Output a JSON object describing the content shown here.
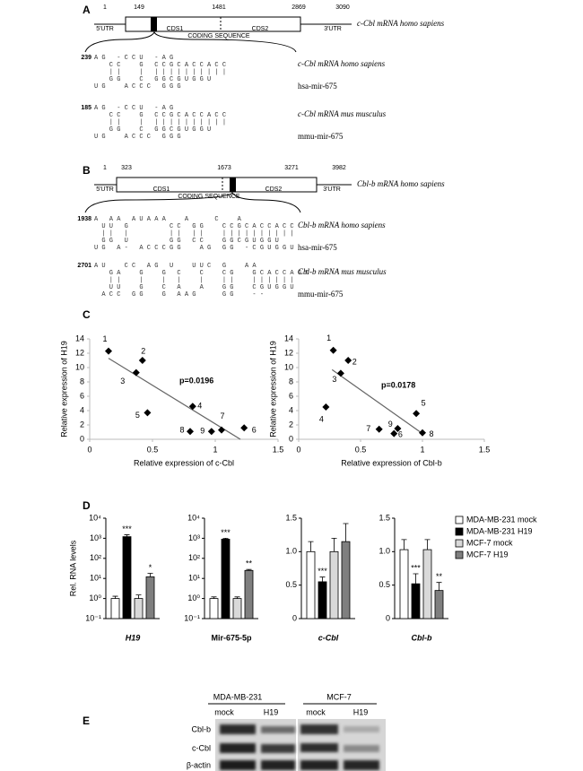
{
  "panel_a": {
    "label": "A",
    "positions": [
      1,
      149,
      1481,
      2869,
      3090
    ],
    "regions": [
      "5'UTR",
      "CDS1",
      "CDS2",
      "3'UTR"
    ],
    "coding_label": "CODING SEQUENCE",
    "mrna_label": "c-Cbl mRNA homo sapiens",
    "alignments": [
      {
        "start": 239,
        "lines": [
          "A G   - C C U   - A G",
          "    C C     G   C C G C A C C A C C",
          "    | |     |   | | | | | | | | | |",
          "    G G     C   G G C G U G G U",
          "U G     A C C C   G G G"
        ],
        "target": "c-Cbl mRNA homo sapiens",
        "mirna": "hsa-mir-675"
      },
      {
        "start": 185,
        "lines": [
          "A G   - C C U   - A G",
          "    C C     G   C C G C A C C A C C",
          "    | |     |   | | | | | | | | | |",
          "    G G     C   G G C G U G G U",
          "U G     A C C C   G G G"
        ],
        "target": "c-Cbl mRNA mus musculus",
        "mirna": "mmu-mir-675"
      }
    ]
  },
  "panel_b": {
    "label": "B",
    "positions": [
      1,
      323,
      1673,
      3271,
      3982
    ],
    "regions": [
      "5'UTR",
      "CDS1",
      "CDS2",
      "3'UTR"
    ],
    "coding_label": "CODING SEQUENCE",
    "mrna_label": "Cbl-b mRNA homo sapiens",
    "alignments": [
      {
        "start": 1938,
        "lines": [
          "A   A A   A U A A A     A       C     A",
          "  U U   G           C C   G G     C C G C A C C A C C",
          "  | |   |           | |   | |     | | | | | | | | | |",
          "  G G   U           G G   C C     G G C G U G G U",
          "U G   A -   A C C C G G     A G   G G   - C G U G G U"
        ],
        "target": "Cbl-b mRNA homo sapiens",
        "mirna": "hsa-mir-675"
      },
      {
        "start": 2701,
        "lines": [
          "A U     C C   A G   U     U U C   G     A A",
          "    G A     G     G   C     C     C G     G C A C C A G C",
          "    | |     |     |   |     |     | |     | | | | | |",
          "    U U     G     C   A     A     G G     C G U G G U",
          "  A C C   G G     G   A A G       G G     - -"
        ],
        "target": "Cbl-b mRNA mus musculus",
        "mirna": "mmu-mir-675"
      }
    ]
  },
  "panel_c": {
    "label": "C"
  },
  "panel_d": {
    "label": "D"
  },
  "chart_data": [
    {
      "type": "scatter",
      "xlabel": "Relative expression of c-Cbl",
      "ylabel": "Relative expression of H19",
      "x": [
        0.15,
        0.42,
        0.37,
        0.82,
        0.46,
        1.23,
        1.05,
        0.8,
        0.97
      ],
      "values": [
        12.3,
        11.0,
        9.3,
        4.6,
        3.7,
        1.6,
        1.3,
        1.1,
        1.1
      ],
      "point_labels": [
        "1",
        "2",
        "3",
        "4",
        "5",
        "6",
        "7",
        "8",
        "9"
      ],
      "color": "#000000",
      "trendline": {
        "x": [
          0.15,
          1.2
        ],
        "y": [
          11.3,
          0
        ]
      },
      "annotation": "p=0.0196",
      "xlim": [
        0,
        1.5
      ],
      "xticks": [
        0,
        0.5,
        1,
        1.5
      ],
      "ylim": [
        0,
        14
      ],
      "yticks": [
        0,
        2,
        4,
        6,
        8,
        10,
        12,
        14
      ]
    },
    {
      "type": "scatter",
      "xlabel": "Relative expression of Cbl-b",
      "ylabel": "Relative expression of H19",
      "x": [
        0.28,
        0.4,
        0.34,
        0.22,
        0.95,
        0.8,
        0.65,
        1.0,
        0.77
      ],
      "values": [
        12.4,
        11.0,
        9.2,
        4.5,
        3.6,
        1.5,
        1.4,
        0.9,
        0.8
      ],
      "point_labels": [
        "1",
        "2",
        "3",
        "4",
        "5",
        "6",
        "7",
        "8",
        "9"
      ],
      "color": "#000000",
      "trendline": {
        "x": [
          0.27,
          1.0
        ],
        "y": [
          9.7,
          0.8
        ]
      },
      "annotation": "p=0.0178",
      "xlim": [
        0,
        1.5
      ],
      "xticks": [
        0,
        0.5,
        1,
        1.5
      ],
      "ylim": [
        0,
        14
      ],
      "yticks": [
        0,
        2,
        4,
        6,
        8,
        10,
        12,
        14
      ]
    },
    {
      "type": "bar",
      "ylabel": "Rel. RNA levels",
      "categories": [
        "H19",
        "Mir-675-5p",
        "c-Cbl",
        "Cbl-b"
      ],
      "axes": [
        {
          "log": true,
          "ylim": [
            0.1,
            10000
          ],
          "yticks": [
            {
              "value": 0.1,
              "label": "10⁻¹"
            },
            {
              "value": 1,
              "label": "10⁰"
            },
            {
              "value": 10,
              "label": "10¹"
            },
            {
              "value": 100,
              "label": "10²"
            },
            {
              "value": 1000,
              "label": "10³"
            },
            {
              "value": 10000,
              "label": "10⁴"
            }
          ]
        },
        {
          "log": true,
          "ylim": [
            0.1,
            10000
          ],
          "yticks": [
            {
              "value": 0.1,
              "label": "10⁻¹"
            },
            {
              "value": 1,
              "label": "10⁰"
            },
            {
              "value": 10,
              "label": "10¹"
            },
            {
              "value": 100,
              "label": "10²"
            },
            {
              "value": 1000,
              "label": "10³"
            },
            {
              "value": 10000,
              "label": "10⁴"
            }
          ]
        },
        {
          "log": false,
          "ylim": [
            0,
            1.5
          ],
          "yticks": [
            0,
            0.5,
            {
              "value": 1,
              "label": "1.0"
            },
            1.5
          ]
        },
        {
          "log": false,
          "ylim": [
            0,
            1.5
          ],
          "yticks": [
            0,
            0.5,
            {
              "value": 1,
              "label": "1.0"
            },
            1.5
          ]
        }
      ],
      "legend": "right",
      "series": [
        {
          "name": "MDA-MB-231 mock",
          "color": "#ffffff",
          "values": [
            1,
            1,
            1.0,
            1.03
          ],
          "errors": [
            0.3,
            0.2,
            0.15,
            0.15
          ]
        },
        {
          "name": "MDA-MB-231 H19",
          "color": "#000000",
          "values": [
            1200,
            900,
            0.55,
            0.52
          ],
          "errors": [
            300,
            100,
            0.07,
            0.15
          ],
          "significance": [
            "***",
            "***",
            "***",
            "***"
          ]
        },
        {
          "name": "MCF-7 mock",
          "color": "#d9d9d9",
          "values": [
            1,
            1,
            1.0,
            1.03
          ],
          "errors": [
            0.5,
            0.2,
            0.2,
            0.15
          ]
        },
        {
          "name": "MCF-7 H19",
          "color": "#7f7f7f",
          "values": [
            12,
            25,
            1.15,
            0.42
          ],
          "errors": [
            6,
            3,
            0.27,
            0.12
          ],
          "significance": [
            "*",
            "**",
            null,
            "**"
          ]
        }
      ]
    }
  ],
  "panel_e": {
    "label": "E",
    "cell_lines": [
      "MDA-MB-231",
      "MCF-7"
    ],
    "lanes": [
      "mock",
      "H19",
      "mock",
      "H19"
    ],
    "proteins": [
      "Cbl-b",
      "c-Cbl",
      "β-actin"
    ]
  }
}
